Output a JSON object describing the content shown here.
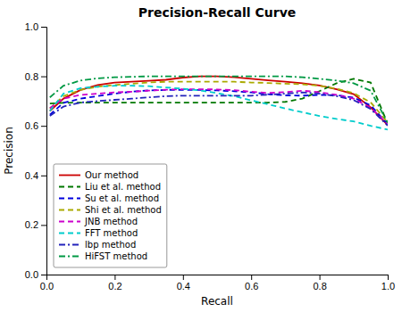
{
  "chart_data": {
    "type": "line",
    "title": "Precision-Recall Curve",
    "xlabel": "Recall",
    "ylabel": "Precision",
    "xlim": [
      0.0,
      1.0
    ],
    "ylim": [
      0.0,
      1.0
    ],
    "xticks": [
      {
        "value": 0,
        "label": "0.0"
      },
      0.2,
      0.4,
      0.6,
      0.8,
      {
        "value": 1,
        "label": "1.0"
      }
    ],
    "yticks": [
      {
        "value": 0,
        "label": "0.0"
      },
      0.2,
      0.4,
      0.6,
      0.8,
      {
        "value": 1,
        "label": "1.0"
      }
    ],
    "grid": false,
    "legend": "lower left",
    "x": [
      0.01,
      0.05,
      0.1,
      0.15,
      0.2,
      0.25,
      0.3,
      0.35,
      0.4,
      0.45,
      0.5,
      0.55,
      0.6,
      0.65,
      0.7,
      0.75,
      0.8,
      0.85,
      0.9,
      0.95,
      1.0
    ],
    "series": [
      {
        "name": "Our method",
        "color": "#cc0000",
        "line_style": "solid",
        "values": [
          0.66,
          0.71,
          0.745,
          0.765,
          0.775,
          0.778,
          0.782,
          0.786,
          0.795,
          0.8,
          0.8,
          0.796,
          0.79,
          0.784,
          0.778,
          0.772,
          0.763,
          0.748,
          0.728,
          0.675,
          0.603
        ]
      },
      {
        "name": "Liu et al. method",
        "color": "#007700",
        "line_style": "dashed",
        "values": [
          0.69,
          0.693,
          0.694,
          0.694,
          0.694,
          0.694,
          0.694,
          0.694,
          0.694,
          0.694,
          0.694,
          0.694,
          0.694,
          0.694,
          0.697,
          0.71,
          0.74,
          0.772,
          0.79,
          0.775,
          0.608
        ]
      },
      {
        "name": "Su et al. method",
        "color": "#0000dd",
        "line_style": "dashed",
        "values": [
          0.645,
          0.693,
          0.71,
          0.72,
          0.73,
          0.738,
          0.743,
          0.745,
          0.745,
          0.745,
          0.743,
          0.74,
          0.735,
          0.728,
          0.723,
          0.722,
          0.725,
          0.724,
          0.714,
          0.683,
          0.607
        ]
      },
      {
        "name": "Shi et al. method",
        "color": "#aaaa00",
        "line_style": "dashed",
        "values": [
          0.67,
          0.72,
          0.745,
          0.758,
          0.765,
          0.77,
          0.775,
          0.778,
          0.778,
          0.778,
          0.778,
          0.778,
          0.775,
          0.773,
          0.77,
          0.768,
          0.762,
          0.75,
          0.732,
          0.695,
          0.614
        ]
      },
      {
        "name": "JNB method",
        "color": "#cc00cc",
        "line_style": "dashed",
        "values": [
          0.672,
          0.71,
          0.725,
          0.73,
          0.735,
          0.738,
          0.742,
          0.746,
          0.748,
          0.748,
          0.747,
          0.744,
          0.738,
          0.733,
          0.736,
          0.742,
          0.736,
          0.725,
          0.71,
          0.673,
          0.608
        ]
      },
      {
        "name": "FFT method",
        "color": "#00cccc",
        "line_style": "dashed",
        "values": [
          0.66,
          0.73,
          0.752,
          0.758,
          0.762,
          0.762,
          0.76,
          0.755,
          0.75,
          0.743,
          0.732,
          0.72,
          0.703,
          0.687,
          0.67,
          0.655,
          0.64,
          0.628,
          0.618,
          0.6,
          0.585
        ]
      },
      {
        "name": "lbp method",
        "color": "#2222bb",
        "line_style": "dashdot",
        "values": [
          0.64,
          0.678,
          0.694,
          0.7,
          0.705,
          0.71,
          0.715,
          0.72,
          0.722,
          0.722,
          0.722,
          0.722,
          0.722,
          0.726,
          0.73,
          0.735,
          0.73,
          0.72,
          0.704,
          0.668,
          0.601
        ]
      },
      {
        "name": "HiFST method",
        "color": "#009944",
        "line_style": "dashdot",
        "values": [
          0.715,
          0.762,
          0.783,
          0.792,
          0.796,
          0.798,
          0.8,
          0.8,
          0.8,
          0.8,
          0.8,
          0.8,
          0.8,
          0.8,
          0.8,
          0.796,
          0.79,
          0.783,
          0.772,
          0.742,
          0.612
        ]
      }
    ]
  }
}
